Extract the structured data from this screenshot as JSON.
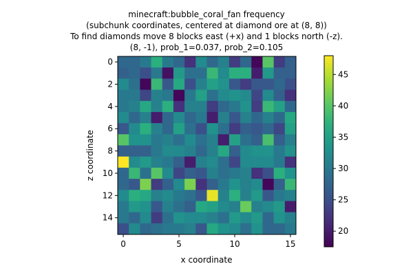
{
  "chart_data": {
    "type": "heatmap",
    "title_lines": [
      "minecraft:bubble_coral_fan frequency",
      "(subchunk coordinates, centered at diamond ore at (8, 8))",
      "To find diamonds move 8 blocks east (+x) and 1 blocks north (-z).",
      "(8, -1), prob_1=0.037, prob_2=0.105"
    ],
    "xlabel": "x coordinate",
    "ylabel": "z coordinate",
    "xticks": [
      0,
      5,
      10,
      15
    ],
    "yticks": [
      0,
      2,
      4,
      6,
      8,
      10,
      12,
      14
    ],
    "colorbar_ticks": [
      20,
      25,
      30,
      35,
      40,
      45
    ],
    "vmin": 17.5,
    "vmax": 48,
    "colormap": "viridis",
    "grid": [
      [
        28,
        28,
        30,
        37,
        30,
        28,
        22,
        32,
        28,
        31,
        23,
        28,
        18,
        40,
        23,
        27
      ],
      [
        27,
        28,
        25,
        30,
        19,
        34,
        29,
        29,
        38,
        32,
        37,
        37,
        20,
        34,
        27,
        27
      ],
      [
        32,
        29,
        18,
        38,
        26,
        36,
        25,
        31,
        35,
        33,
        26,
        23,
        26,
        26,
        28,
        25
      ],
      [
        30,
        30,
        24,
        31,
        30,
        18,
        30,
        35,
        29,
        32,
        33,
        32,
        24,
        32,
        27,
        22
      ],
      [
        30,
        31,
        36,
        31,
        37,
        22,
        31,
        31,
        23,
        28,
        30,
        33,
        23,
        38,
        35,
        28
      ],
      [
        32,
        28,
        31,
        20,
        28,
        32,
        28,
        30,
        20,
        31,
        26,
        31,
        28,
        31,
        28,
        36
      ],
      [
        26,
        32,
        37,
        31,
        28,
        35,
        29,
        25,
        33,
        29,
        23,
        27,
        26,
        28,
        24,
        35
      ],
      [
        40,
        33,
        33,
        30,
        31,
        29,
        32,
        29,
        31,
        20,
        35,
        29,
        27,
        39,
        27,
        31
      ],
      [
        27,
        27,
        27,
        30,
        32,
        32,
        31,
        28,
        31,
        36,
        27,
        32,
        33,
        33,
        30,
        33
      ],
      [
        48,
        32,
        34,
        31,
        30,
        27,
        20,
        31,
        32,
        29,
        24,
        32,
        32,
        32,
        30,
        22
      ],
      [
        28,
        38,
        29,
        40,
        32,
        24,
        27,
        26,
        31,
        29,
        30,
        31,
        22,
        25,
        37,
        33
      ],
      [
        28,
        26,
        42,
        23,
        27,
        32,
        42,
        22,
        27,
        30,
        33,
        31,
        32,
        18,
        27,
        38
      ],
      [
        32,
        37,
        36,
        31,
        32,
        30,
        29,
        26,
        47,
        31,
        37,
        31,
        34,
        26,
        30,
        31
      ],
      [
        30,
        34,
        33,
        26,
        31,
        29,
        27,
        36,
        35,
        32,
        31,
        41,
        31,
        32,
        34,
        20
      ],
      [
        30,
        28,
        32,
        23,
        29,
        33,
        32,
        32,
        31,
        29,
        34,
        32,
        34,
        28,
        33,
        31
      ],
      [
        25,
        32,
        28,
        29,
        30,
        30,
        31,
        26,
        36,
        33,
        32,
        29,
        33,
        28,
        28,
        30
      ]
    ]
  }
}
